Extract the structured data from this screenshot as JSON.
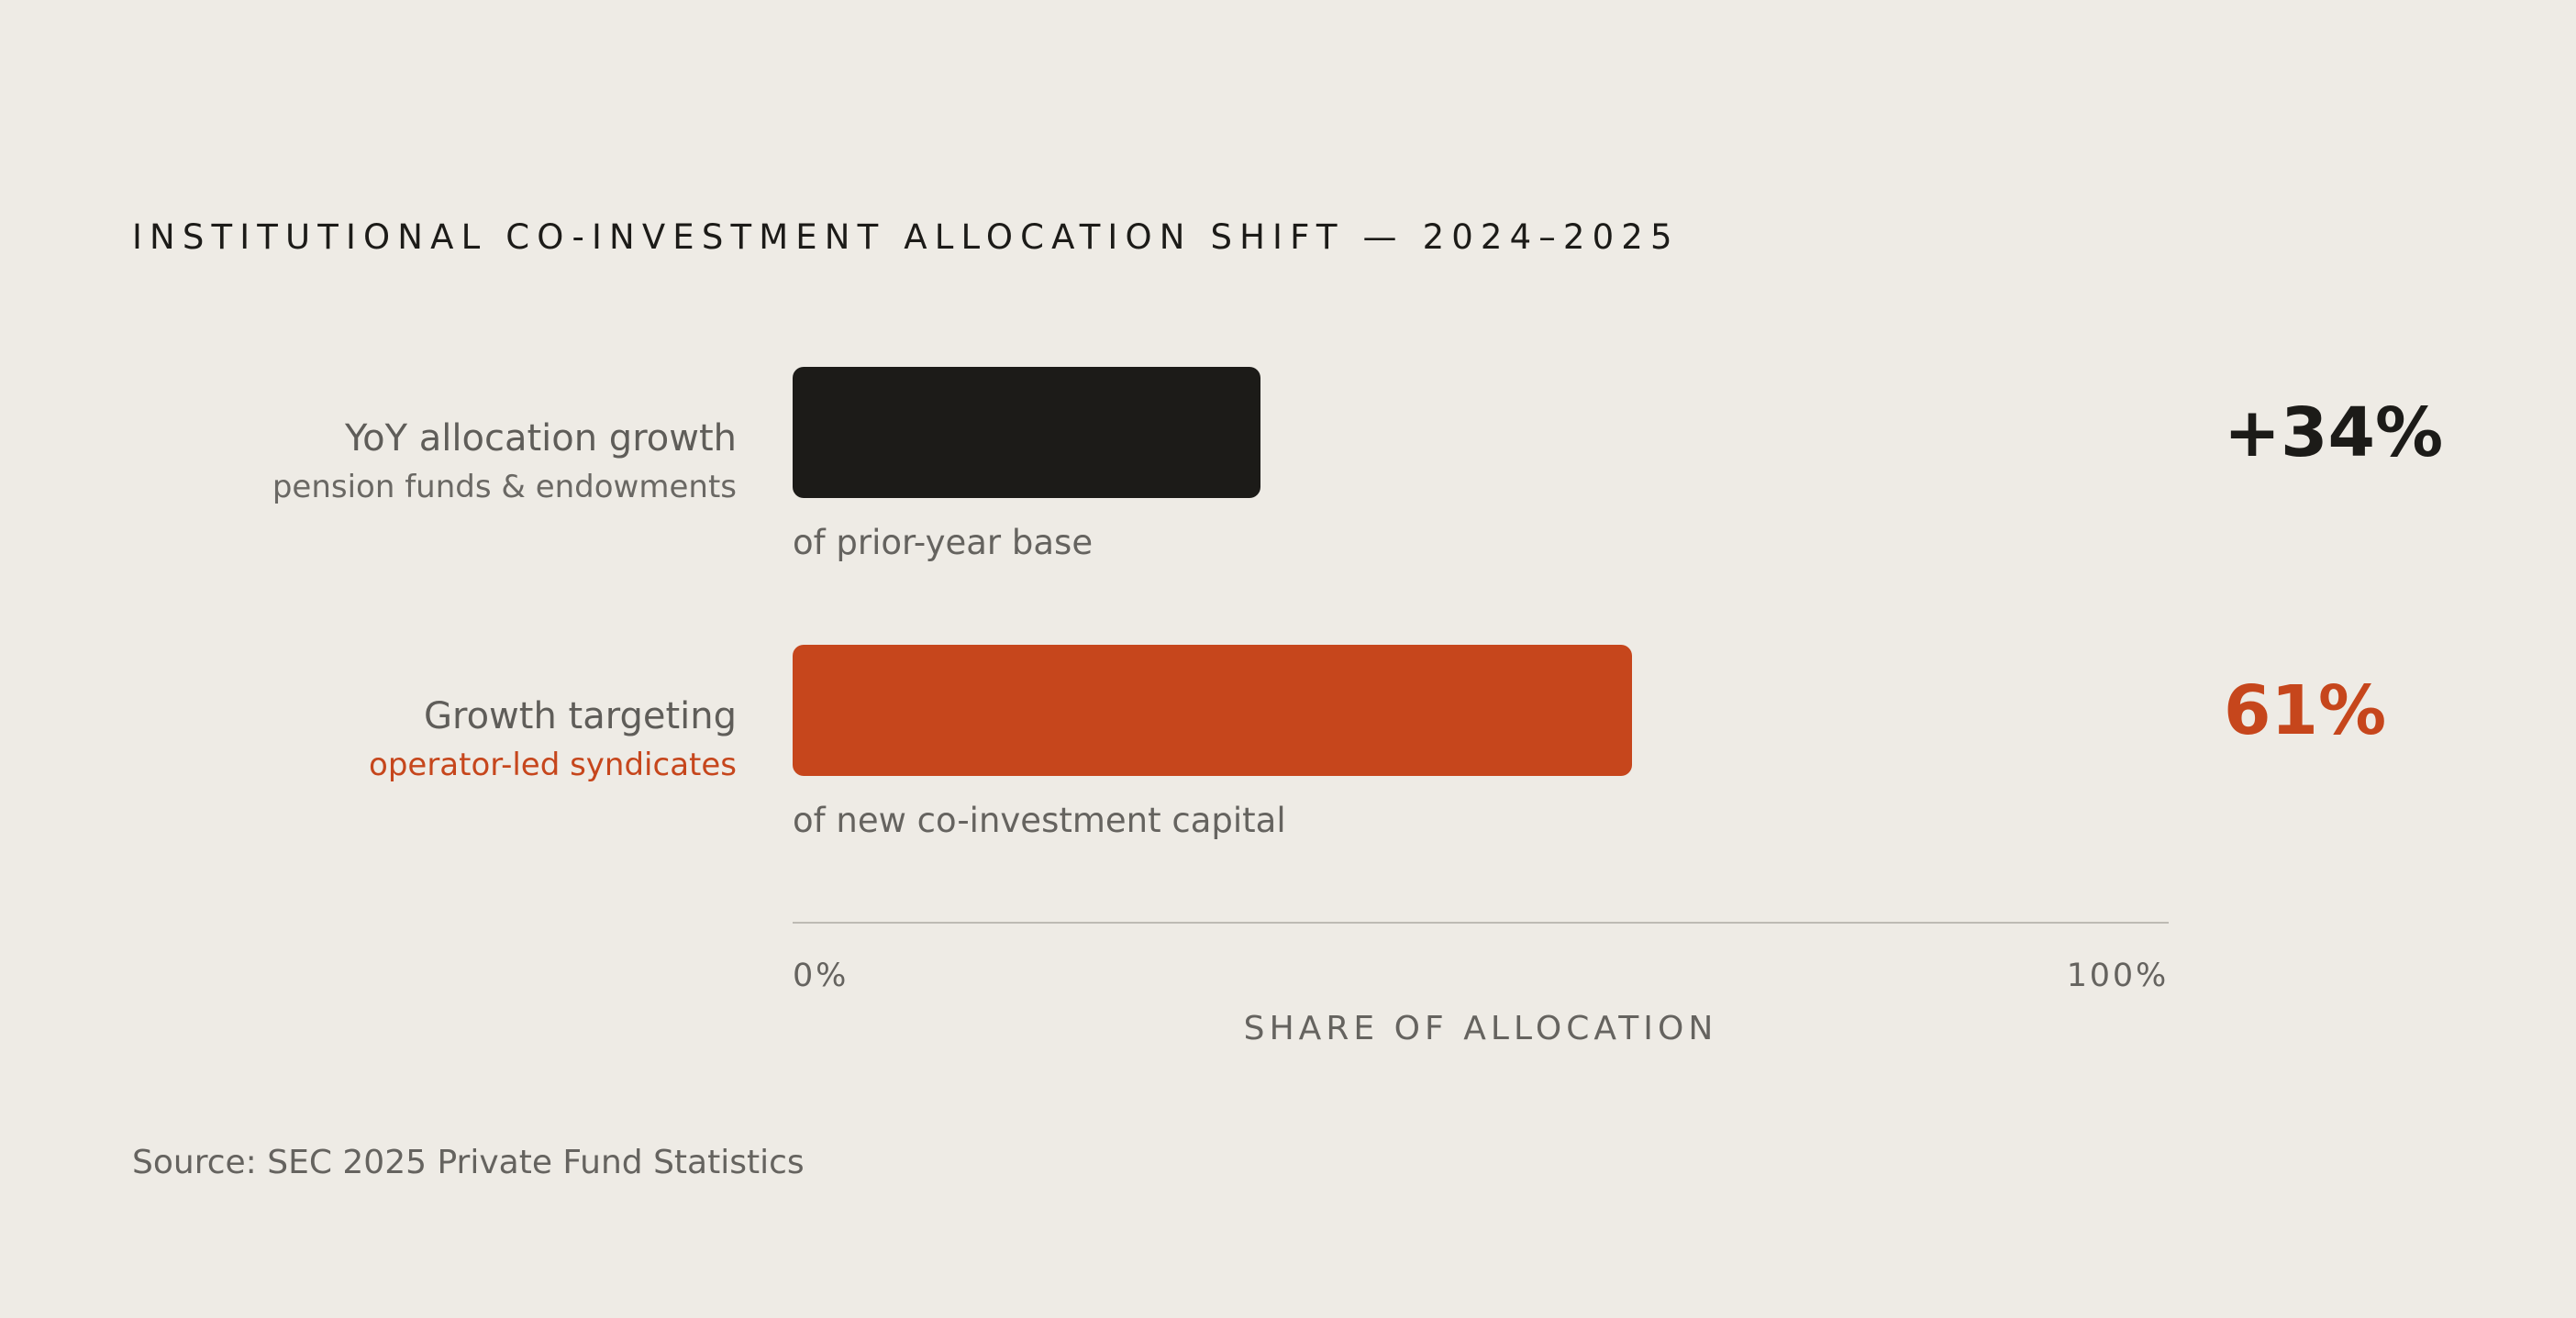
{
  "chart_data": {
    "type": "bar",
    "orientation": "horizontal",
    "title": "INSTITUTIONAL CO-INVESTMENT ALLOCATION SHIFT — 2024–2025",
    "xlabel": "SHARE OF ALLOCATION",
    "xlim": [
      0,
      100
    ],
    "ticks": [
      "0%",
      "100%"
    ],
    "bars": [
      {
        "label": "YoY allocation growth",
        "sublabel": "pension funds & endowments",
        "value": 34,
        "value_label": "+34%",
        "note": "of prior-year base",
        "color": "#1C1B18"
      },
      {
        "label": "Growth targeting",
        "sublabel": "operator-led syndicates",
        "value": 61,
        "value_label": "61%",
        "note": "of new co-investment capital",
        "color": "#C6461C"
      }
    ],
    "source": "Source: SEC 2025 Private Fund Statistics"
  }
}
